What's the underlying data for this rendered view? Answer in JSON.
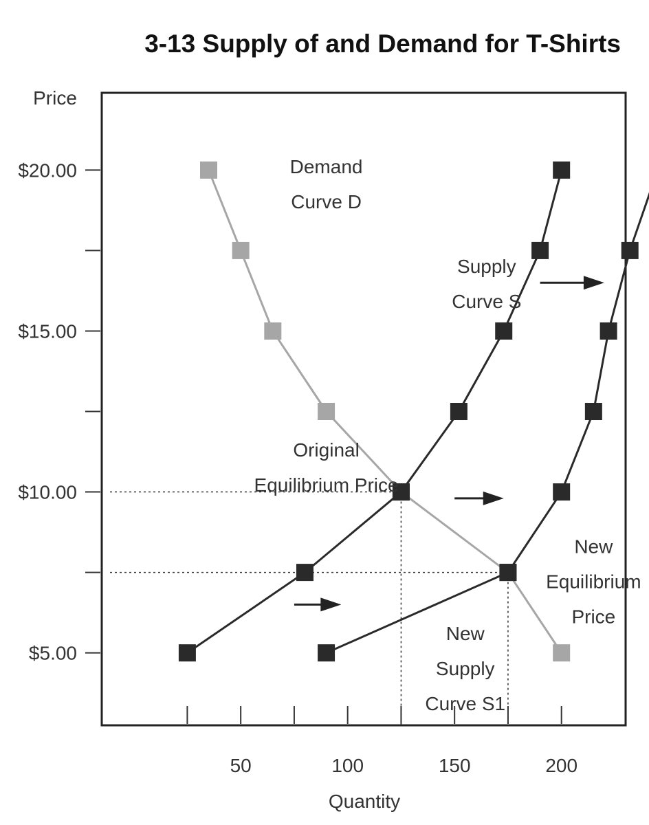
{
  "chart_data": {
    "type": "line",
    "title": "3-13 Supply of and Demand for T-Shirts",
    "xlabel": "Quantity",
    "ylabel": "Price",
    "xlim": [
      -15,
      230
    ],
    "ylim": [
      2.75,
      22.4
    ],
    "x_ticks": [
      25,
      50,
      75,
      100,
      125,
      150,
      175,
      200
    ],
    "x_tick_labels": [
      {
        "x": 50,
        "label": "50"
      },
      {
        "x": 100,
        "label": "100"
      },
      {
        "x": 150,
        "label": "150"
      },
      {
        "x": 200,
        "label": "200"
      }
    ],
    "y_ticks": [
      5,
      7.5,
      10,
      12.5,
      15,
      17.5,
      20
    ],
    "y_tick_labels": [
      {
        "y": 5,
        "label": "$5.00"
      },
      {
        "y": 10,
        "label": "$10.00"
      },
      {
        "y": 15,
        "label": "$15.00"
      },
      {
        "y": 20,
        "label": "$20.00"
      }
    ],
    "series": [
      {
        "key": "demand",
        "color": "#a6a6a6",
        "x": [
          35,
          50,
          65,
          90,
          125,
          175,
          200
        ],
        "y": [
          20,
          17.5,
          15,
          12.5,
          10,
          7.5,
          5
        ]
      },
      {
        "key": "supply",
        "color": "#2a2a2a",
        "x": [
          25,
          80,
          125,
          152,
          173,
          190,
          200
        ],
        "y": [
          5,
          7.5,
          10,
          12.5,
          15,
          17.5,
          20
        ]
      },
      {
        "key": "supply_s1",
        "color": "#2a2a2a",
        "x": [
          90,
          175,
          200,
          215,
          222,
          232,
          245
        ],
        "y": [
          5,
          7.5,
          10,
          12.5,
          15,
          17.5,
          20
        ]
      }
    ],
    "equilibria": [
      {
        "key": "original",
        "x": 125,
        "y": 10
      },
      {
        "key": "new",
        "x": 175,
        "y": 7.5
      }
    ],
    "arrows": [
      {
        "x1": 190,
        "x2": 220,
        "y": 16.5
      },
      {
        "x1": 150,
        "x2": 173,
        "y": 9.8
      },
      {
        "x1": 75,
        "x2": 97,
        "y": 6.5
      }
    ],
    "annotations": [
      {
        "key": "demand_label",
        "lines": [
          "Demand",
          "Curve D"
        ],
        "x": 90,
        "y": 19.9
      },
      {
        "key": "supply_label",
        "lines": [
          "Supply",
          "Curve S"
        ],
        "x": 165,
        "y": 16.8
      },
      {
        "key": "original_eq_label",
        "lines": [
          "Original",
          "Equilibrium Price"
        ],
        "x": 90,
        "y": 11.1
      },
      {
        "key": "new_eq_label",
        "lines": [
          "New",
          "Equilibrium",
          "Price"
        ],
        "x": 215,
        "y": 8.1
      },
      {
        "key": "new_supply_label",
        "lines": [
          "New",
          "Supply",
          "Curve S1"
        ],
        "x": 155,
        "y": 5.4
      }
    ]
  }
}
